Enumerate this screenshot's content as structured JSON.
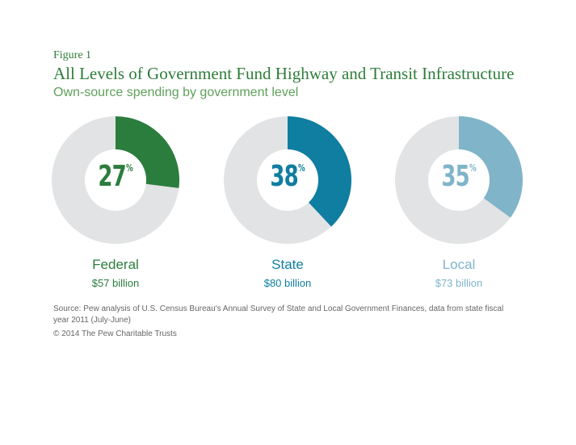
{
  "figure_label": "Figure 1",
  "title": "All Levels of Government Fund Highway and Transit Infrastructure",
  "subtitle": "Own-source spending  by government level",
  "colors": {
    "title": "#2e7d3a",
    "subtitle": "#5fa05a",
    "track": "#e2e3e4",
    "federal": "#2b7d3d",
    "state": "#0f7ea0",
    "local": "#7fb4c9"
  },
  "chart_data": {
    "type": "pie",
    "title": "All Levels of Government Fund Highway and Transit Infrastructure",
    "subtitle": "Own-source spending  by government level",
    "categories": [
      "Federal",
      "State",
      "Local"
    ],
    "values": [
      27,
      38,
      35
    ],
    "amounts": [
      "$57 billion",
      "$80 billion",
      "$73 billion"
    ],
    "percent_sign": "%",
    "colors": [
      "#2b7d3d",
      "#0f7ea0",
      "#7fb4c9"
    ],
    "donuts": [
      {
        "label": "Federal",
        "percent": 27,
        "percent_text": "27",
        "amount": "$57 billion",
        "color": "#2b7d3d"
      },
      {
        "label": "State",
        "percent": 38,
        "percent_text": "38",
        "amount": "$80 billion",
        "color": "#0f7ea0"
      },
      {
        "label": "Local",
        "percent": 35,
        "percent_text": "35",
        "amount": "$73 billion",
        "color": "#7fb4c9"
      }
    ]
  },
  "source": "Source: Pew analysis of U.S. Census Bureau's Annual Survey of State and Local Government Finances, data from state fiscal year 2011 (July-June)",
  "copyright": "© 2014 The Pew Charitable Trusts"
}
